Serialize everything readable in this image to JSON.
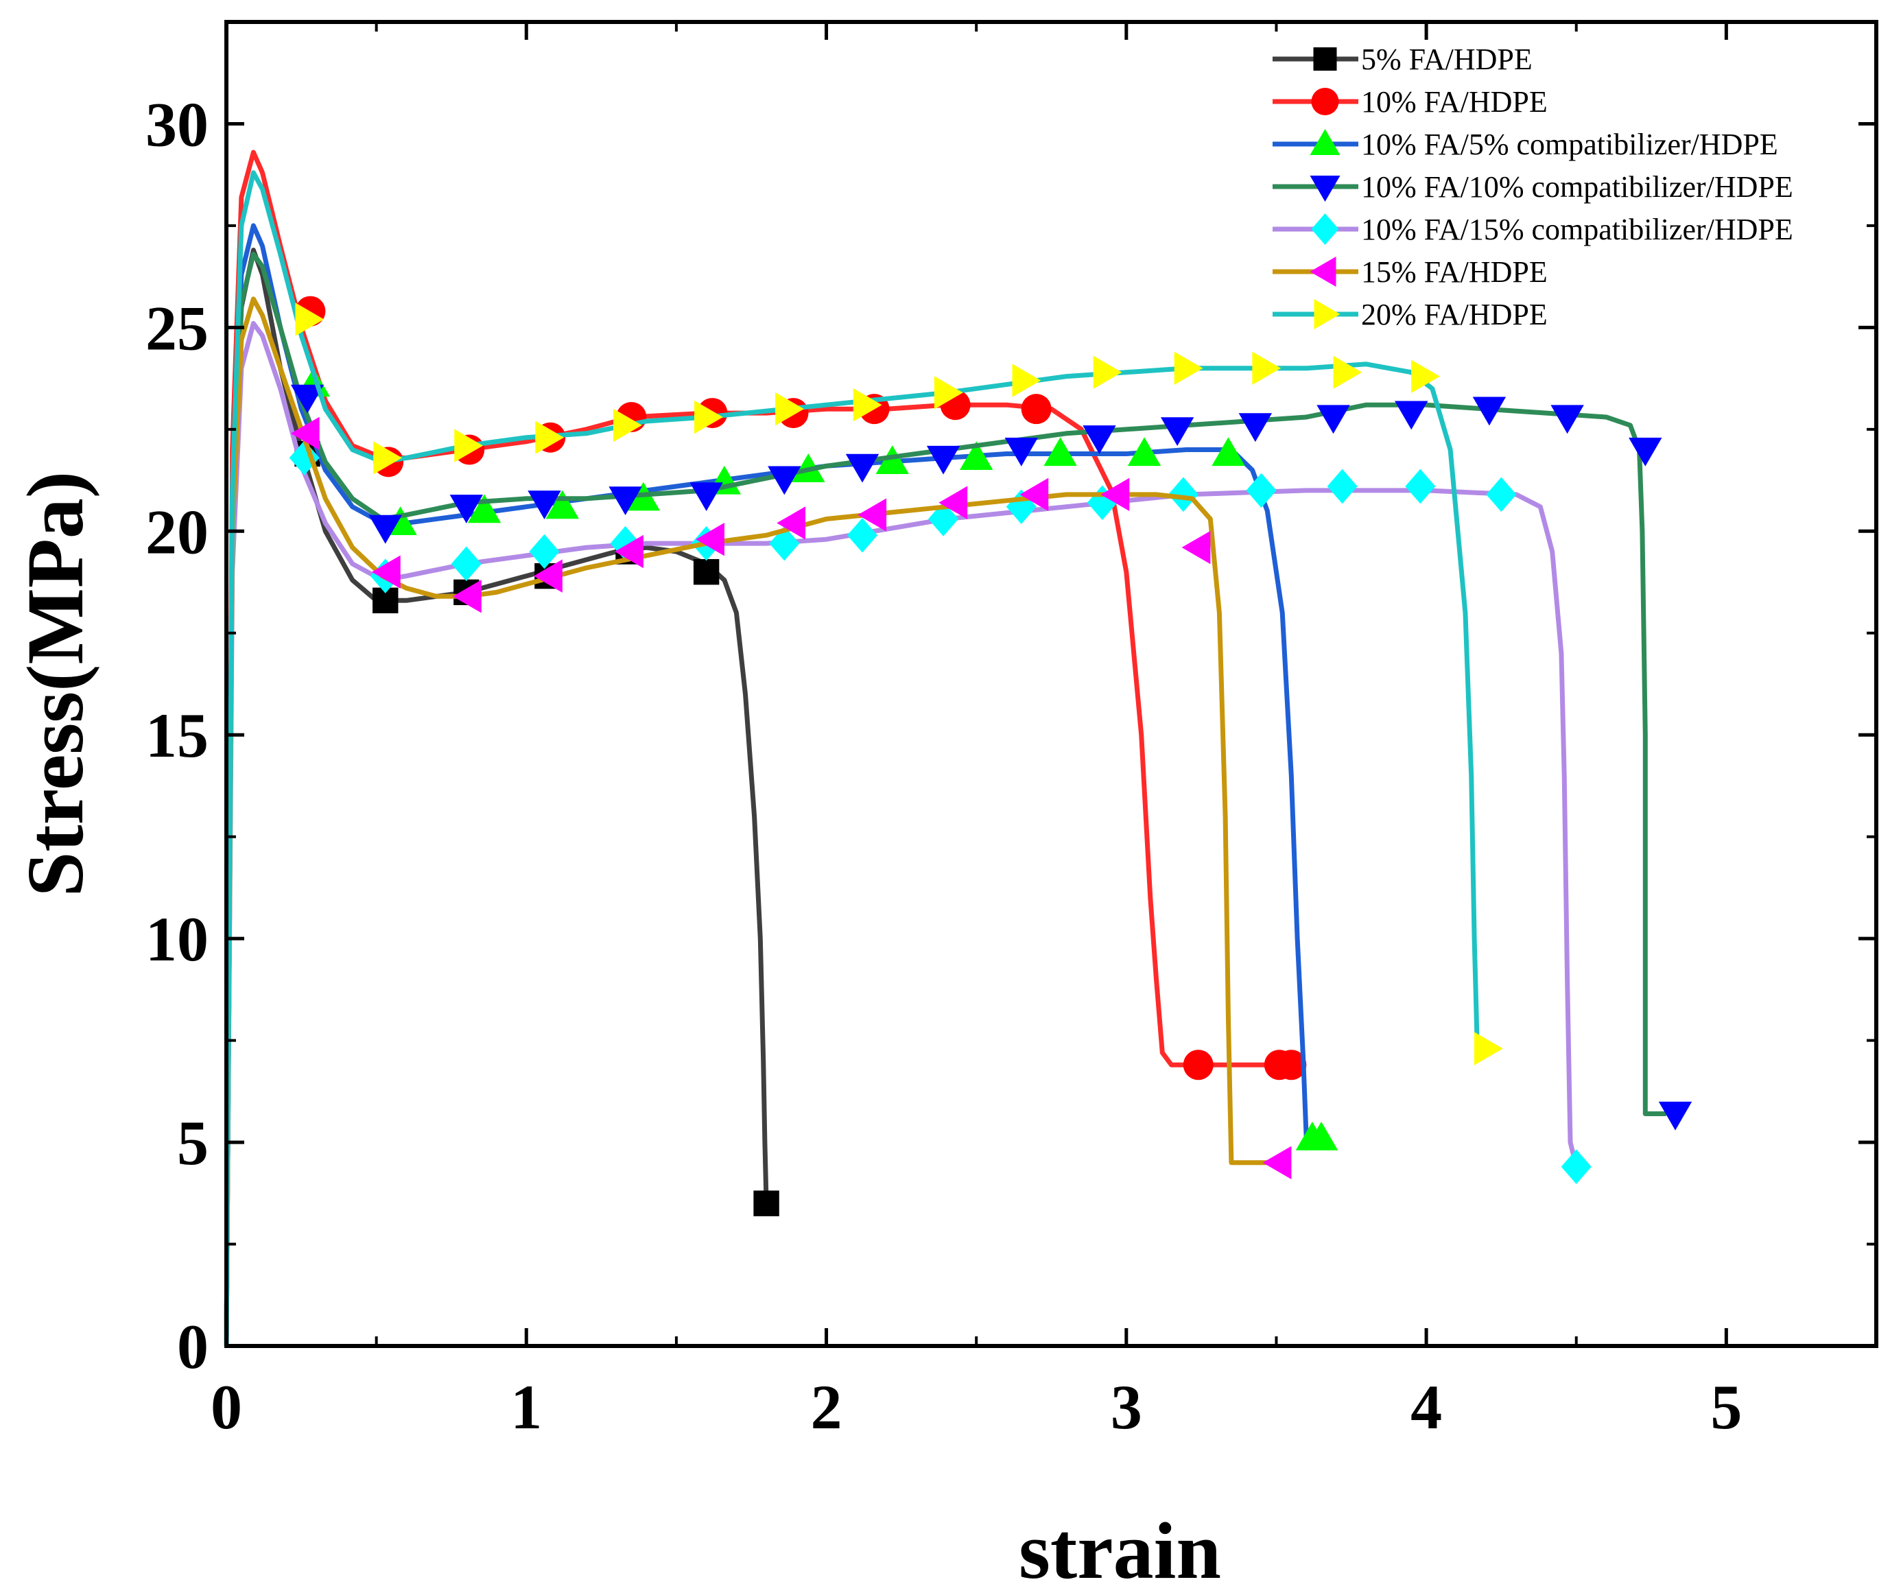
{
  "chart_data": {
    "type": "line",
    "title": "",
    "xlabel": "strain",
    "ylabel": "Stress(MPa)",
    "xlim": [
      0,
      5.5
    ],
    "ylim": [
      0,
      32.5
    ],
    "xticks": [
      0,
      1,
      2,
      3,
      4,
      5
    ],
    "xtick_labels": [
      "0",
      "1",
      "2",
      "3",
      "4",
      "5"
    ],
    "yticks": [
      0,
      5,
      10,
      15,
      20,
      25,
      30
    ],
    "ytick_labels": [
      "0",
      "5",
      "10",
      "15",
      "20",
      "25",
      "30"
    ],
    "grid": false,
    "legend_position": "top-right",
    "series": [
      {
        "name": "5% FA/HDPE",
        "line_color": "#3f3f3f",
        "marker": "square",
        "marker_color": "#000000",
        "x": [
          0,
          0.02,
          0.05,
          0.09,
          0.12,
          0.18,
          0.25,
          0.33,
          0.42,
          0.5,
          0.6,
          0.7,
          0.8,
          0.9,
          1.0,
          1.1,
          1.2,
          1.3,
          1.4,
          1.5,
          1.6,
          1.66,
          1.7,
          1.73,
          1.76,
          1.78,
          1.79,
          1.795,
          1.8
        ],
        "y": [
          0,
          20,
          25.5,
          26.9,
          26.3,
          24.0,
          22.0,
          20.0,
          18.8,
          18.3,
          18.3,
          18.4,
          18.5,
          18.7,
          18.9,
          19.1,
          19.3,
          19.5,
          19.6,
          19.5,
          19.2,
          18.8,
          18.0,
          16.0,
          13.0,
          10.0,
          7.0,
          5.0,
          3.5
        ],
        "markers_x": [
          0.27,
          0.53,
          0.8,
          1.07,
          1.34,
          1.6,
          1.8
        ],
        "markers_y": [
          21.9,
          18.3,
          18.5,
          18.9,
          19.5,
          19.0,
          3.5
        ]
      },
      {
        "name": "10% FA/HDPE",
        "line_color": "#ff2a2a",
        "marker": "circle",
        "marker_color": "#ff0000",
        "x": [
          0,
          0.02,
          0.05,
          0.09,
          0.12,
          0.18,
          0.25,
          0.33,
          0.42,
          0.52,
          0.6,
          0.8,
          1.0,
          1.2,
          1.35,
          1.6,
          1.8,
          2.0,
          2.2,
          2.4,
          2.6,
          2.75,
          2.85,
          2.95,
          3.0,
          3.05,
          3.08,
          3.1,
          3.12,
          3.15,
          3.25,
          3.4,
          3.55
        ],
        "y": [
          0,
          22,
          28.2,
          29.3,
          28.8,
          27.0,
          25.0,
          23.2,
          22.1,
          21.8,
          21.8,
          22.0,
          22.2,
          22.5,
          22.8,
          22.9,
          22.9,
          23.0,
          23.0,
          23.1,
          23.1,
          23.0,
          22.5,
          21.0,
          19.0,
          15.0,
          11.0,
          9.0,
          7.2,
          6.9,
          6.9,
          6.9,
          6.9
        ],
        "markers_x": [
          0.28,
          0.54,
          0.81,
          1.08,
          1.35,
          1.62,
          1.89,
          2.16,
          2.43,
          2.7,
          3.24,
          3.51,
          3.55
        ],
        "markers_y": [
          25.4,
          21.7,
          22.0,
          22.3,
          22.8,
          22.9,
          22.9,
          23.0,
          23.1,
          23.0,
          6.9,
          6.9,
          6.9
        ]
      },
      {
        "name": "10% FA/5% compatibilizer/HDPE",
        "line_color": "#1f5fd6",
        "marker": "triangle-up",
        "marker_color": "#00ff00",
        "x": [
          0,
          0.02,
          0.05,
          0.09,
          0.12,
          0.18,
          0.25,
          0.33,
          0.42,
          0.52,
          0.6,
          0.8,
          1.0,
          1.2,
          1.4,
          1.6,
          1.8,
          2.0,
          2.2,
          2.4,
          2.6,
          2.8,
          3.0,
          3.2,
          3.35,
          3.42,
          3.47,
          3.52,
          3.55,
          3.57,
          3.59,
          3.6,
          3.65
        ],
        "y": [
          0,
          21,
          26.3,
          27.5,
          27.0,
          25.0,
          23.0,
          21.5,
          20.6,
          20.2,
          20.2,
          20.4,
          20.6,
          20.8,
          21.0,
          21.2,
          21.4,
          21.6,
          21.7,
          21.8,
          21.9,
          21.9,
          21.9,
          22.0,
          22.0,
          21.5,
          20.5,
          18.0,
          14.0,
          10.0,
          7.0,
          5.1,
          5.1
        ],
        "markers_x": [
          0.29,
          0.58,
          0.86,
          1.12,
          1.39,
          1.66,
          1.94,
          2.22,
          2.5,
          2.78,
          3.06,
          3.34,
          3.62,
          3.65
        ],
        "markers_y": [
          23.6,
          20.2,
          20.5,
          20.6,
          20.8,
          21.2,
          21.5,
          21.7,
          21.8,
          21.9,
          21.9,
          21.9,
          5.1,
          5.1
        ]
      },
      {
        "name": "10% FA/10% compatibilizer/HDPE",
        "line_color": "#2e8b57",
        "marker": "triangle-down",
        "marker_color": "#0000ff",
        "x": [
          0,
          0.02,
          0.05,
          0.09,
          0.12,
          0.18,
          0.25,
          0.33,
          0.42,
          0.52,
          0.6,
          0.8,
          1.0,
          1.2,
          1.4,
          1.6,
          1.8,
          2.0,
          2.4,
          2.8,
          3.2,
          3.6,
          3.8,
          4.0,
          4.2,
          4.4,
          4.6,
          4.68,
          4.71,
          4.72,
          4.73,
          4.73,
          4.8
        ],
        "y": [
          0,
          20,
          25.6,
          26.8,
          26.5,
          25.0,
          23.2,
          21.7,
          20.8,
          20.3,
          20.4,
          20.7,
          20.8,
          20.8,
          20.9,
          21.0,
          21.3,
          21.6,
          22.0,
          22.4,
          22.6,
          22.8,
          23.1,
          23.1,
          23.0,
          22.9,
          22.8,
          22.6,
          22.0,
          20.0,
          15.0,
          5.7,
          5.7
        ],
        "markers_x": [
          0.27,
          0.53,
          0.8,
          1.06,
          1.33,
          1.6,
          1.86,
          2.12,
          2.39,
          2.65,
          2.91,
          3.17,
          3.43,
          3.69,
          3.95,
          4.21,
          4.47,
          4.73,
          4.83
        ],
        "markers_y": [
          23.3,
          20.1,
          20.6,
          20.7,
          20.8,
          20.9,
          21.3,
          21.6,
          21.8,
          22.0,
          22.3,
          22.5,
          22.6,
          22.8,
          22.9,
          23.0,
          22.8,
          22.0,
          5.7
        ]
      },
      {
        "name": "10% FA/15% compatibilizer/HDPE",
        "line_color": "#b28ae6",
        "marker": "diamond",
        "marker_color": "#00ffff",
        "x": [
          0,
          0.02,
          0.05,
          0.09,
          0.12,
          0.18,
          0.25,
          0.33,
          0.42,
          0.52,
          0.6,
          0.8,
          1.0,
          1.2,
          1.4,
          1.6,
          1.8,
          2.0,
          2.4,
          2.8,
          3.2,
          3.6,
          4.0,
          4.3,
          4.38,
          4.42,
          4.45,
          4.46,
          4.47,
          4.48,
          4.5
        ],
        "y": [
          0,
          19,
          24.0,
          25.1,
          24.8,
          23.5,
          21.6,
          20.2,
          19.2,
          18.8,
          18.9,
          19.2,
          19.4,
          19.6,
          19.7,
          19.7,
          19.7,
          19.8,
          20.3,
          20.6,
          20.9,
          21.0,
          21.0,
          20.9,
          20.6,
          19.5,
          17.0,
          14.0,
          9.0,
          5.0,
          4.4
        ],
        "markers_x": [
          0.26,
          0.53,
          0.8,
          1.06,
          1.33,
          1.6,
          1.86,
          2.12,
          2.39,
          2.65,
          2.92,
          3.19,
          3.45,
          3.72,
          3.98,
          4.25,
          4.5
        ],
        "markers_y": [
          21.8,
          18.9,
          19.2,
          19.5,
          19.7,
          19.7,
          19.7,
          19.9,
          20.3,
          20.6,
          20.7,
          20.9,
          21.0,
          21.1,
          21.1,
          20.9,
          4.4
        ]
      },
      {
        "name": "15% FA/HDPE",
        "line_color": "#c8960c",
        "marker": "triangle-left",
        "marker_color": "#ff00ff",
        "x": [
          0,
          0.02,
          0.05,
          0.09,
          0.12,
          0.18,
          0.25,
          0.33,
          0.42,
          0.52,
          0.6,
          0.7,
          0.8,
          0.9,
          1.0,
          1.2,
          1.4,
          1.6,
          1.8,
          2.0,
          2.4,
          2.8,
          3.1,
          3.22,
          3.28,
          3.31,
          3.33,
          3.34,
          3.35,
          3.5
        ],
        "y": [
          0,
          20,
          24.7,
          25.7,
          25.3,
          24.0,
          22.5,
          20.8,
          19.6,
          18.9,
          18.6,
          18.4,
          18.4,
          18.5,
          18.7,
          19.1,
          19.4,
          19.7,
          19.9,
          20.3,
          20.6,
          20.9,
          20.9,
          20.8,
          20.3,
          18.0,
          13.0,
          8.0,
          4.5,
          4.5
        ],
        "markers_x": [
          0.27,
          0.54,
          0.81,
          1.08,
          1.35,
          1.62,
          1.89,
          2.16,
          2.43,
          2.7,
          2.97,
          3.24,
          3.51
        ],
        "markers_y": [
          22.4,
          19.0,
          18.4,
          18.9,
          19.5,
          19.8,
          20.2,
          20.4,
          20.7,
          20.9,
          20.9,
          19.6,
          4.5
        ]
      },
      {
        "name": "20% FA/HDPE",
        "line_color": "#1fc2c2",
        "marker": "triangle-right",
        "marker_color": "#ffff00",
        "x": [
          0,
          0.02,
          0.05,
          0.09,
          0.12,
          0.18,
          0.25,
          0.33,
          0.42,
          0.52,
          0.6,
          0.8,
          1.0,
          1.2,
          1.4,
          1.6,
          2.0,
          2.4,
          2.8,
          3.2,
          3.6,
          3.8,
          3.95,
          4.02,
          4.08,
          4.13,
          4.15,
          4.16,
          4.17,
          4.2
        ],
        "y": [
          0,
          21,
          27.5,
          28.8,
          28.4,
          26.8,
          24.8,
          23.0,
          22.0,
          21.7,
          21.8,
          22.1,
          22.3,
          22.4,
          22.7,
          22.8,
          23.1,
          23.4,
          23.8,
          24.0,
          24.0,
          24.1,
          23.9,
          23.5,
          22.0,
          18.0,
          14.0,
          10.0,
          7.3,
          7.3
        ],
        "markers_x": [
          0.27,
          0.53,
          0.8,
          1.07,
          1.33,
          1.6,
          1.87,
          2.13,
          2.4,
          2.66,
          2.93,
          3.2,
          3.46,
          3.73,
          3.99,
          4.2
        ],
        "markers_y": [
          25.2,
          21.8,
          22.1,
          22.3,
          22.6,
          22.8,
          23.0,
          23.1,
          23.4,
          23.7,
          23.9,
          24.0,
          24.0,
          23.9,
          23.8,
          7.3
        ]
      }
    ]
  }
}
